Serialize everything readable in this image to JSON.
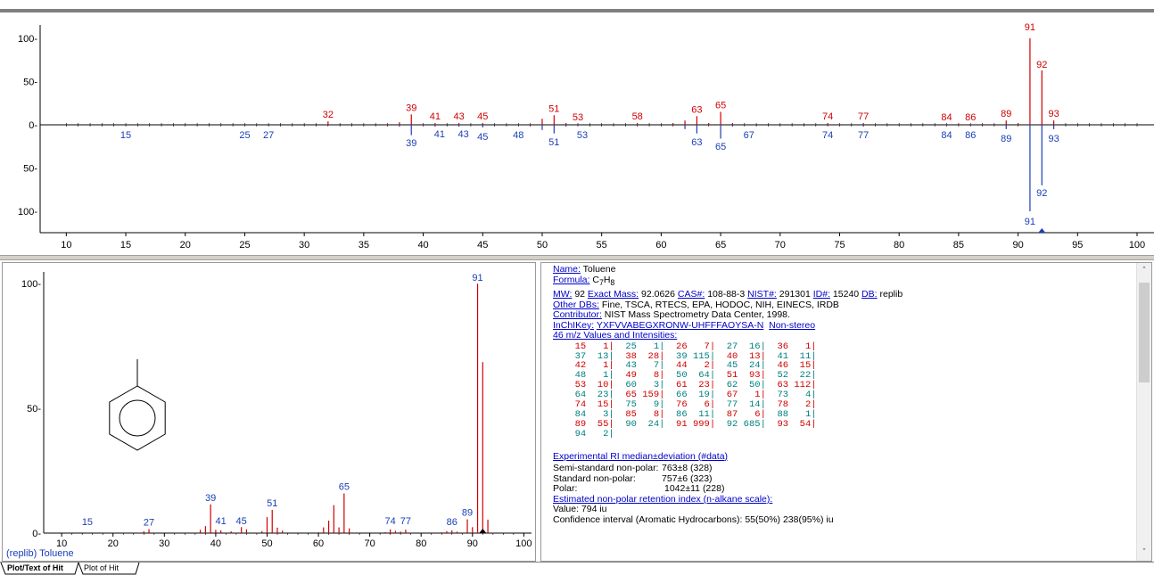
{
  "top_plot": {
    "x_ticks": [
      "10",
      "15",
      "20",
      "25",
      "30",
      "35",
      "40",
      "45",
      "50",
      "55",
      "60",
      "65",
      "70",
      "75",
      "80",
      "85",
      "90",
      "95",
      "100"
    ],
    "y_ticks_upper": [
      "100-",
      "50-",
      "0-"
    ],
    "y_ticks_lower": [
      "50-",
      "100-"
    ],
    "peaks_upper": [
      {
        "mz": 32,
        "value": 4
      },
      {
        "mz": 36,
        "value": 1
      },
      {
        "mz": 37,
        "value": 1
      },
      {
        "mz": 38,
        "value": 3
      },
      {
        "mz": 39,
        "value": 12
      },
      {
        "mz": 40,
        "value": 1
      },
      {
        "mz": 41,
        "value": 2
      },
      {
        "mz": 43,
        "value": 2
      },
      {
        "mz": 45,
        "value": 2
      },
      {
        "mz": 49,
        "value": 1
      },
      {
        "mz": 50,
        "value": 7
      },
      {
        "mz": 51,
        "value": 11
      },
      {
        "mz": 52,
        "value": 2
      },
      {
        "mz": 53,
        "value": 1
      },
      {
        "mz": 58,
        "value": 2
      },
      {
        "mz": 61,
        "value": 2
      },
      {
        "mz": 62,
        "value": 5
      },
      {
        "mz": 63,
        "value": 10
      },
      {
        "mz": 64,
        "value": 2
      },
      {
        "mz": 65,
        "value": 15
      },
      {
        "mz": 66,
        "value": 2
      },
      {
        "mz": 73,
        "value": 1
      },
      {
        "mz": 74,
        "value": 2
      },
      {
        "mz": 75,
        "value": 1
      },
      {
        "mz": 77,
        "value": 2
      },
      {
        "mz": 84,
        "value": 1
      },
      {
        "mz": 85,
        "value": 1
      },
      {
        "mz": 86,
        "value": 1
      },
      {
        "mz": 87,
        "value": 1
      },
      {
        "mz": 89,
        "value": 5
      },
      {
        "mz": 90,
        "value": 2
      },
      {
        "mz": 91,
        "value": 100
      },
      {
        "mz": 92,
        "value": 63
      },
      {
        "mz": 93,
        "value": 5
      }
    ],
    "peaks_lower": [
      {
        "mz": 15,
        "value": 0
      },
      {
        "mz": 25,
        "value": 0
      },
      {
        "mz": 27,
        "value": 1
      },
      {
        "mz": 38,
        "value": 2
      },
      {
        "mz": 39,
        "value": 12
      },
      {
        "mz": 40,
        "value": 1
      },
      {
        "mz": 41,
        "value": 2
      },
      {
        "mz": 43,
        "value": 2
      },
      {
        "mz": 45,
        "value": 3
      },
      {
        "mz": 50,
        "value": 6
      },
      {
        "mz": 51,
        "value": 10
      },
      {
        "mz": 52,
        "value": 2
      },
      {
        "mz": 53,
        "value": 1
      },
      {
        "mz": 62,
        "value": 5
      },
      {
        "mz": 63,
        "value": 10
      },
      {
        "mz": 65,
        "value": 16
      },
      {
        "mz": 66,
        "value": 2
      },
      {
        "mz": 67,
        "value": 1
      },
      {
        "mz": 74,
        "value": 1
      },
      {
        "mz": 77,
        "value": 2
      },
      {
        "mz": 84,
        "value": 1
      },
      {
        "mz": 86,
        "value": 1
      },
      {
        "mz": 89,
        "value": 5
      },
      {
        "mz": 91,
        "value": 100
      },
      {
        "mz": 92,
        "value": 70
      },
      {
        "mz": 93,
        "value": 5
      }
    ],
    "labels_upper": [
      "32",
      "39",
      "41",
      "43",
      "45",
      "51",
      "53",
      "58",
      "63",
      "65",
      "74",
      "77",
      "84",
      "86",
      "89",
      "91",
      "92",
      "93"
    ],
    "labels_lower": [
      "15",
      "25",
      "27",
      "39",
      "41",
      "43",
      "45",
      "48",
      "51",
      "53",
      "63",
      "65",
      "67",
      "74",
      "77",
      "84",
      "86",
      "89",
      "92",
      "91",
      "93"
    ],
    "colors": {
      "upper": "#d00000",
      "lower": "#1a3fb5",
      "axis": "#000000"
    }
  },
  "bottom_plot": {
    "y_ticks": [
      "100-",
      "50-",
      "0-"
    ],
    "x_ticks": [
      "10",
      "20",
      "30",
      "40",
      "50",
      "60",
      "70",
      "80",
      "90",
      "100"
    ],
    "peaks": [
      {
        "mz": 15,
        "value": 0.1
      },
      {
        "mz": 25,
        "value": 0.1
      },
      {
        "mz": 26,
        "value": 0.7
      },
      {
        "mz": 27,
        "value": 1.6
      },
      {
        "mz": 36,
        "value": 0.1
      },
      {
        "mz": 37,
        "value": 1.3
      },
      {
        "mz": 38,
        "value": 2.8
      },
      {
        "mz": 39,
        "value": 11.5
      },
      {
        "mz": 40,
        "value": 1.3
      },
      {
        "mz": 41,
        "value": 1.1
      },
      {
        "mz": 42,
        "value": 0.1
      },
      {
        "mz": 43,
        "value": 0.7
      },
      {
        "mz": 44,
        "value": 0.2
      },
      {
        "mz": 45,
        "value": 2.4
      },
      {
        "mz": 46,
        "value": 1.5
      },
      {
        "mz": 48,
        "value": 0.1
      },
      {
        "mz": 49,
        "value": 0.8
      },
      {
        "mz": 50,
        "value": 6.4
      },
      {
        "mz": 51,
        "value": 9.3
      },
      {
        "mz": 52,
        "value": 2.2
      },
      {
        "mz": 53,
        "value": 1.0
      },
      {
        "mz": 60,
        "value": 0.3
      },
      {
        "mz": 61,
        "value": 2.3
      },
      {
        "mz": 62,
        "value": 5.0
      },
      {
        "mz": 63,
        "value": 11.2
      },
      {
        "mz": 64,
        "value": 2.3
      },
      {
        "mz": 65,
        "value": 15.9
      },
      {
        "mz": 66,
        "value": 1.9
      },
      {
        "mz": 67,
        "value": 0.1
      },
      {
        "mz": 73,
        "value": 0.4
      },
      {
        "mz": 74,
        "value": 1.5
      },
      {
        "mz": 75,
        "value": 0.9
      },
      {
        "mz": 76,
        "value": 0.6
      },
      {
        "mz": 77,
        "value": 1.4
      },
      {
        "mz": 78,
        "value": 0.2
      },
      {
        "mz": 84,
        "value": 0.3
      },
      {
        "mz": 85,
        "value": 0.8
      },
      {
        "mz": 86,
        "value": 1.1
      },
      {
        "mz": 87,
        "value": 0.6
      },
      {
        "mz": 88,
        "value": 0.1
      },
      {
        "mz": 89,
        "value": 5.5
      },
      {
        "mz": 90,
        "value": 2.4
      },
      {
        "mz": 91,
        "value": 99.9
      },
      {
        "mz": 92,
        "value": 68.5
      },
      {
        "mz": 93,
        "value": 5.4
      },
      {
        "mz": 94,
        "value": 0.2
      }
    ],
    "labels": [
      "15",
      "27",
      "39",
      "41",
      "45",
      "51",
      "65",
      "74",
      "77",
      "86",
      "89",
      "91"
    ],
    "caption": "(replib) Toluene",
    "colors": {
      "peak": "#d00000",
      "label": "#1a3fb5"
    }
  },
  "info": {
    "name_label": "Name:",
    "name_value": "Toluene",
    "formula_label": "Formula:",
    "formula_value": "C",
    "formula_sub1": "7",
    "formula_mid": "H",
    "formula_sub2": "8",
    "mw_label": "MW:",
    "mw_value": "92",
    "exact_mass_label": "Exact Mass:",
    "exact_mass_value": "92.0626",
    "cas_label": "CAS#:",
    "cas_value": "108-88-3",
    "nist_label": "NIST#:",
    "nist_value": "291301",
    "id_label": "ID#:",
    "id_value": "15240",
    "db_label": "DB:",
    "db_value": "replib",
    "other_dbs_label": "Other DBs:",
    "other_dbs_value": "Fine, TSCA, RTECS, EPA, HODOC, NIH, EINECS, IRDB",
    "contributor_label": "Contributor:",
    "contributor_value": "NIST Mass Spectrometry Data Center, 1998.",
    "inchikey_label": "InChIKey:",
    "inchikey_value": "YXFVVABEGXRONW-UHFFFAOYSA-N",
    "non_stereo": "Non-stereo",
    "mz_header": "46 m/z Values and Intensities:",
    "intensities": [
      [
        [
          "15",
          "1"
        ],
        [
          "25",
          "1"
        ],
        [
          "26",
          "7"
        ],
        [
          "27",
          "16"
        ],
        [
          "36",
          "1"
        ]
      ],
      [
        [
          "37",
          "13"
        ],
        [
          "38",
          "28"
        ],
        [
          "39",
          "115"
        ],
        [
          "40",
          "13"
        ],
        [
          "41",
          "11"
        ]
      ],
      [
        [
          "42",
          "1"
        ],
        [
          "43",
          "7"
        ],
        [
          "44",
          "2"
        ],
        [
          "45",
          "24"
        ],
        [
          "46",
          "15"
        ]
      ],
      [
        [
          "48",
          "1"
        ],
        [
          "49",
          "8"
        ],
        [
          "50",
          "64"
        ],
        [
          "51",
          "93"
        ],
        [
          "52",
          "22"
        ]
      ],
      [
        [
          "53",
          "10"
        ],
        [
          "60",
          "3"
        ],
        [
          "61",
          "23"
        ],
        [
          "62",
          "50"
        ],
        [
          "63",
          "112"
        ]
      ],
      [
        [
          "64",
          "23"
        ],
        [
          "65",
          "159"
        ],
        [
          "66",
          "19"
        ],
        [
          "67",
          "1"
        ],
        [
          "73",
          "4"
        ]
      ],
      [
        [
          "74",
          "15"
        ],
        [
          "75",
          "9"
        ],
        [
          "76",
          "6"
        ],
        [
          "77",
          "14"
        ],
        [
          "78",
          "2"
        ]
      ],
      [
        [
          "84",
          "3"
        ],
        [
          "85",
          "8"
        ],
        [
          "86",
          "11"
        ],
        [
          "87",
          "6"
        ],
        [
          "88",
          "1"
        ]
      ],
      [
        [
          "89",
          "55"
        ],
        [
          "90",
          "24"
        ],
        [
          "91",
          "999"
        ],
        [
          "92",
          "685"
        ],
        [
          "93",
          "54"
        ]
      ],
      [
        [
          "94",
          "2"
        ]
      ]
    ],
    "ri_header": "Experimental RI median±deviation (#data)",
    "ri_rows": [
      {
        "label": "Semi-standard non-polar:",
        "value": "763±8 (328)"
      },
      {
        "label": "Standard non-polar:",
        "value": "757±6 (323)"
      },
      {
        "label": "Polar:",
        "value": "1042±11 (228)"
      }
    ],
    "est_header": "Estimated non-polar retention index (n-alkane scale):",
    "est_value": "Value: 794 iu",
    "confidence": "Confidence interval (Aromatic Hydrocarbons):  55(50%) 238(95%) iu"
  },
  "tabs": {
    "tab1": "Plot/Text of Hit",
    "tab2": "Plot of Hit"
  }
}
